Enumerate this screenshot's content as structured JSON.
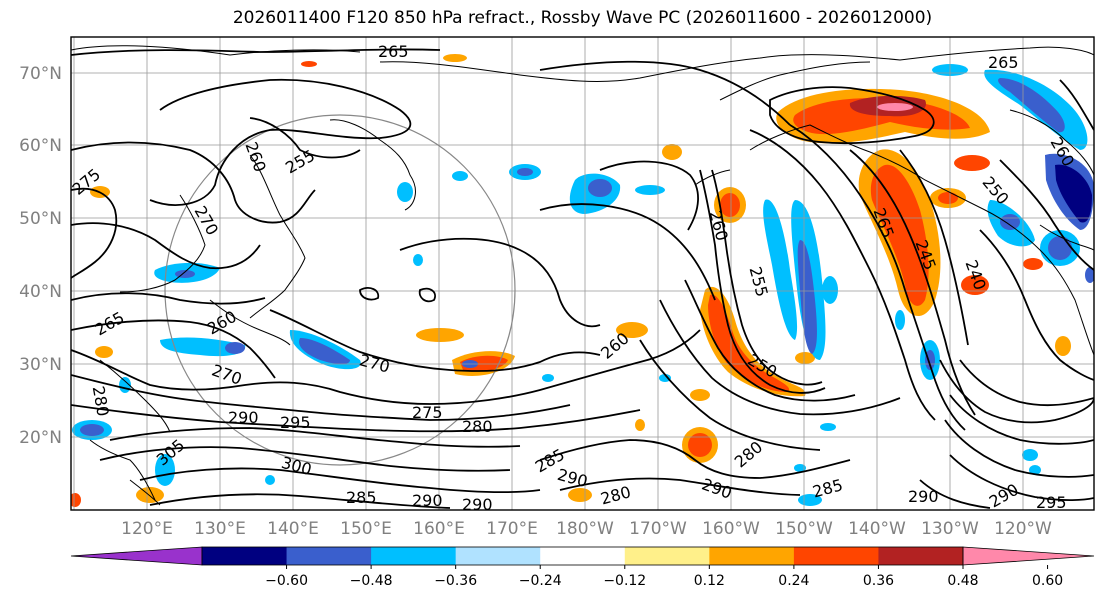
{
  "title": "2026011400 F120 850 hPa refract., Rossby Wave PC (2026011600 - 2026012000)",
  "lat_labels": [
    "70°N",
    "60°N",
    "50°N",
    "40°N",
    "30°N",
    "20°N"
  ],
  "lon_labels": [
    "120°E",
    "130°E",
    "140°E",
    "150°E",
    "160°E",
    "170°E",
    "180°W",
    "170°W",
    "160°W",
    "150°W",
    "140°W",
    "130°W",
    "120°W"
  ],
  "contour_labels": [
    "265",
    "265",
    "260",
    "255",
    "270",
    "275",
    "265",
    "260",
    "270",
    "270",
    "280",
    "290",
    "295",
    "275",
    "280",
    "300",
    "305",
    "285",
    "290",
    "290",
    "260",
    "255",
    "260",
    "265",
    "250",
    "245",
    "240",
    "285",
    "290",
    "280",
    "280",
    "290",
    "285",
    "290",
    "290",
    "295",
    "260",
    "250"
  ],
  "colorbar": {
    "ticks": [
      "−0.60",
      "−0.48",
      "−0.36",
      "−0.24",
      "−0.12",
      "0.12",
      "0.24",
      "0.36",
      "0.48",
      "0.60"
    ],
    "colors": [
      "#9932cc",
      "#000080",
      "#3a5fcd",
      "#00bfff",
      "#b0e2ff",
      "#ffffff",
      "#fff08a",
      "#ffa500",
      "#ff4500",
      "#b22222",
      "#ff88aa"
    ]
  }
}
